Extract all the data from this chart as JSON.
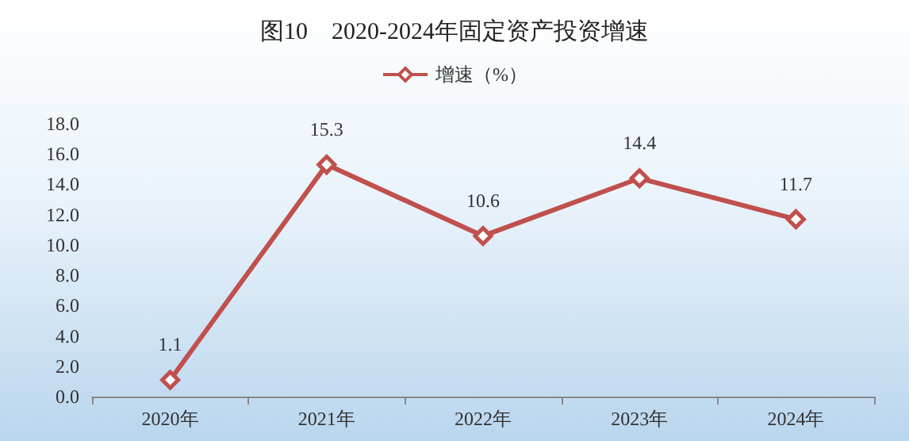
{
  "chart_data": {
    "type": "line",
    "title": "图10　2020-2024年固定资产投资增速",
    "categories": [
      "2020年",
      "2021年",
      "2022年",
      "2023年",
      "2024年"
    ],
    "series": [
      {
        "name": "增速（%）",
        "color": "#c0504d",
        "values": [
          1.1,
          15.3,
          10.6,
          14.4,
          11.7
        ]
      }
    ],
    "ylim": [
      0,
      18
    ],
    "yticks": [
      {
        "value": 0,
        "label": "0.0"
      },
      {
        "value": 2,
        "label": "2.0"
      },
      {
        "value": 4,
        "label": "4.0"
      },
      {
        "value": 6,
        "label": "6.0"
      },
      {
        "value": 8,
        "label": "8.0"
      },
      {
        "value": 10,
        "label": "10.0"
      },
      {
        "value": 12,
        "label": "12.0"
      },
      {
        "value": 14,
        "label": "14.0"
      },
      {
        "value": 16,
        "label": "16.0"
      },
      {
        "value": 18,
        "label": "18.0"
      }
    ],
    "grid": false,
    "legend": "top",
    "marker": "diamond",
    "line_style": "solid",
    "data_labels": true
  }
}
